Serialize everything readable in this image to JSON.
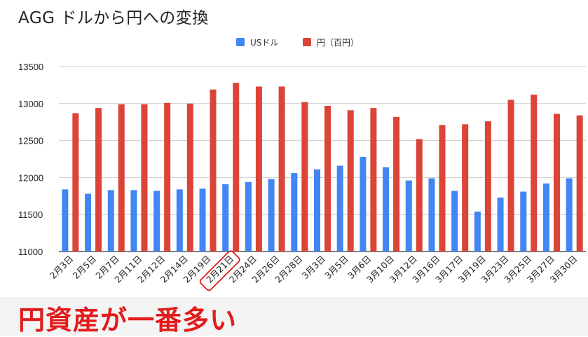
{
  "chart_data": {
    "type": "bar",
    "title": "AGG ドルから円への変換",
    "categories": [
      "2月3日",
      "2月5日",
      "2月7日",
      "2月11日",
      "2月12日",
      "2月14日",
      "2月19日",
      "2月21日",
      "2月24日",
      "2月26日",
      "2月28日",
      "3月3日",
      "3月5日",
      "3月6日",
      "3月10日",
      "3月12日",
      "3月16日",
      "3月17日",
      "3月19日",
      "3月23日",
      "3月25日",
      "3月27日",
      "3月30日"
    ],
    "series": [
      {
        "name": "USドル",
        "color": "#4285f4",
        "values": [
          11840,
          11780,
          11830,
          11830,
          11820,
          11840,
          11850,
          11910,
          11940,
          11980,
          12060,
          12110,
          12160,
          12280,
          12140,
          11960,
          11990,
          11820,
          11540,
          11730,
          11810,
          11920,
          11990
        ]
      },
      {
        "name": "円（百円）",
        "color": "#db4437",
        "values": [
          12870,
          12940,
          12990,
          12990,
          13010,
          13000,
          13190,
          13280,
          13230,
          13230,
          13020,
          12970,
          12910,
          12940,
          12820,
          12520,
          12710,
          12720,
          12760,
          13050,
          13120,
          12860,
          12840
        ]
      }
    ],
    "ylim": [
      11000,
      13500
    ],
    "yticks": [
      11000,
      11500,
      12000,
      12500,
      13000,
      13500
    ],
    "grid": true,
    "legend_position": "top-center",
    "highlighted_category": "2月21日",
    "highlight_color": "#e31b1b"
  },
  "caption": {
    "text": "円資産が一番多い",
    "color": "#e31b1b"
  }
}
